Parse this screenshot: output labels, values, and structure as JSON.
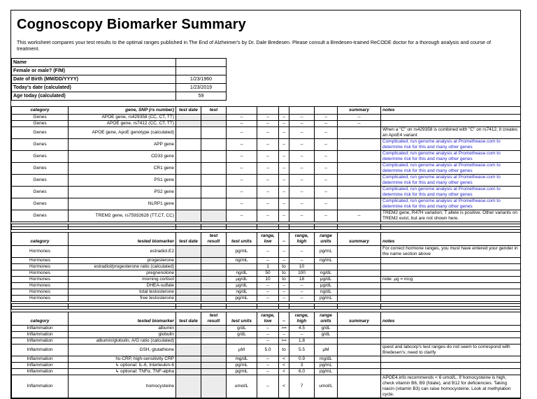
{
  "page": {
    "title": "Cognoscopy Biomarker Summary",
    "subtitle": "This worksheet compares your test results to the optimal ranges published in The End of Alzheimer's by Dr. Dale Bredesen. Please consult a Bredesen-trained ReCODE doctor for a thorough analysis and course of treatment."
  },
  "profile": {
    "rows": [
      {
        "label": "Name",
        "value": ""
      },
      {
        "label": "Female or male?  (F/M)",
        "value": ""
      },
      {
        "label": "Date of Birth (MM/DD/YYYY)",
        "value": "1/23/1960"
      },
      {
        "label": "Today's date (calculated)",
        "value": "1/23/2019"
      },
      {
        "label": "Age today (calculated)",
        "value": "59"
      }
    ]
  },
  "colors": {
    "note_blue": "#2222cc",
    "entry_cell_gray": "#ececec",
    "border": "#000000"
  },
  "tables": [
    {
      "name": "genes",
      "headers": [
        "category",
        "gene, SNP (rs number)",
        "test date",
        "test",
        "",
        "",
        "",
        "",
        "",
        "summary",
        "notes"
      ],
      "rows": [
        {
          "c": [
            "Genes",
            "APOE gene,  rs429358 (CC, CT, TT)",
            "",
            "",
            "--",
            "--",
            "--",
            "--",
            "--",
            "--",
            ""
          ],
          "shaded": true
        },
        {
          "c": [
            "Genes",
            "APOE  gene,  rs7412 (CC, CT, TT)",
            "",
            "",
            "--",
            "--",
            "--",
            "--",
            "--",
            "--",
            ""
          ],
          "shaded": true
        },
        {
          "c": [
            "Genes",
            "APOE gene,  ApoE genotype (calculated)",
            "",
            "",
            "--",
            "--",
            "--",
            "--",
            "--",
            "",
            "When a \"C\" on rs429358 is combined with \"C\" on rs7412, it creates an ApoE4 variant"
          ]
        },
        {
          "c": [
            "Genes",
            "APP gene",
            "",
            "",
            "--",
            "--",
            "--",
            "--",
            "--",
            "",
            "Complicated; run genome analysis at Promethease.com to determine risk for this and many other genes"
          ],
          "blue": true
        },
        {
          "c": [
            "Genes",
            "CD33 gene",
            "",
            "",
            "--",
            "--",
            "--",
            "--",
            "--",
            "",
            "Complicated; run genome analysis at Promethease.com to determine risk for this and many other genes"
          ],
          "blue": true
        },
        {
          "c": [
            "Genes",
            "CR1 gene",
            "",
            "",
            "--",
            "--",
            "--",
            "--",
            "--",
            "",
            "Complicated; run genome analysis at Promethease.com to determine risk for this and many other genes"
          ],
          "blue": true
        },
        {
          "c": [
            "Genes",
            "PS1 gene",
            "",
            "",
            "--",
            "--",
            "--",
            "--",
            "--",
            "",
            "Complicated; run genome analysis at Promethease.com to determine risk for this and many other genes"
          ],
          "blue": true
        },
        {
          "c": [
            "Genes",
            "PS2 gene",
            "",
            "",
            "--",
            "--",
            "--",
            "--",
            "--",
            "",
            "Complicated; run genome analysis at Promethease.com to determine risk for this and many other genes"
          ],
          "blue": true
        },
        {
          "c": [
            "Genes",
            "NLRP1 gene",
            "",
            "",
            "--",
            "--",
            "--",
            "--",
            "--",
            "",
            "Complicated; run genome analysis at Promethease.com to determine risk for this and many other genes"
          ],
          "blue": true
        },
        {
          "c": [
            "Genes",
            "TREM2 gene,  rs75932628 (TT,CT, CC)",
            "",
            "",
            "--",
            "--",
            "--",
            "--",
            "--",
            "--",
            "TREM2 gene, R47H variation; T allele is positive.  Other variants on TREM2 exist, but are not shown here."
          ],
          "shaded": true
        }
      ]
    },
    {
      "name": "hormones",
      "headers": [
        "category",
        "tested biomarker",
        "test date",
        "test\nresult",
        "test units",
        "range,\nlow",
        "--",
        "range, high",
        "range\nunits",
        "summary",
        "notes"
      ],
      "rows": [
        {
          "c": [
            "Hormones",
            "estradiol.E2",
            "",
            "",
            "pg/mL",
            "--",
            "--",
            "--",
            "pg/mL",
            "",
            "For correct hormone ranges, you must have entered your gender in the name section above"
          ],
          "shaded": true
        },
        {
          "c": [
            "Hormones",
            "progesterone",
            "",
            "",
            "ng/mL",
            "--",
            "--",
            "--",
            "ng/mL",
            "",
            ""
          ],
          "shaded": true
        },
        {
          "c": [
            "Hormones",
            "estradiol/progesterone ratio (calculated)",
            "",
            "",
            "",
            "1",
            "to",
            "10",
            "",
            "",
            ""
          ]
        },
        {
          "c": [
            "Hormones",
            "pregnenolone",
            "",
            "",
            "ng/dL",
            "50",
            "to",
            "100",
            "ng/dL",
            "",
            ""
          ],
          "shaded": true
        },
        {
          "c": [
            "Hormones",
            "morning cortisol",
            "",
            "",
            "µg/dL",
            "10",
            "to",
            "18",
            "µg/dL",
            "",
            "note:  µg  =  mcg"
          ],
          "shaded": true
        },
        {
          "c": [
            "Hormones",
            "DHEA-sulfate",
            "",
            "",
            "µg/dL",
            "--",
            "--",
            "--",
            "µg/dL",
            "",
            ""
          ],
          "shaded": true
        },
        {
          "c": [
            "Hormones",
            "total testosterone",
            "",
            "",
            "ng/dL",
            "--",
            "--",
            "--",
            "ng/dL",
            "",
            ""
          ],
          "shaded": true
        },
        {
          "c": [
            "Hormones",
            "free testosterone",
            "",
            "",
            "pg/mL",
            "--",
            "--",
            "--",
            "pg/mL",
            "",
            ""
          ],
          "shaded": true
        }
      ]
    },
    {
      "name": "inflammation",
      "headers": [
        "category",
        "tested biomarker",
        "test date",
        "test\nresult",
        "test units",
        "range,\nlow",
        "--",
        "range, high",
        "range\nunits",
        "summary",
        "notes"
      ],
      "rows": [
        {
          "c": [
            "Inflammation",
            "albumin",
            "",
            "",
            "g/dL",
            "--",
            ">=",
            "4.5",
            "g/dL",
            "",
            ""
          ],
          "shaded": true
        },
        {
          "c": [
            "Inflammation",
            "globulin",
            "",
            "",
            "g/dL",
            "--",
            "--",
            "--",
            "g/dL",
            "",
            ""
          ],
          "shaded": true
        },
        {
          "c": [
            "Inflammation",
            "albumin/globulin, A/G ratio (calculated)",
            "",
            "",
            "",
            "--",
            ">=",
            "1.8",
            "",
            "",
            ""
          ]
        },
        {
          "c": [
            "Inflammation",
            "GSH, glutathione",
            "",
            "",
            "µM",
            "5.0",
            "to",
            "5.5",
            "µM",
            "",
            "quest and labcorp's test ranges do not seem to correspond with Bredesen's; need to clarify"
          ],
          "shaded": true
        },
        {
          "c": [
            "Inflammation",
            "hs-CRP, high-sensitivity CRP",
            "",
            "",
            "mg/dL",
            "--",
            "<",
            "0.9",
            "mg/dL",
            "",
            ""
          ],
          "shaded": true
        },
        {
          "c": [
            "Inflammation",
            "↳ optional:  IL-6, Interleukin-6",
            "",
            "",
            "pg/mL",
            "--",
            "<",
            "3",
            "pg/mL",
            "",
            ""
          ],
          "shaded": true
        },
        {
          "c": [
            "Inflammation",
            "↳ optional:  TNFα, TNF-alpha",
            "",
            "",
            "pg/mL",
            "--",
            "<",
            "6.0",
            "pg/mL",
            "",
            ""
          ],
          "shaded": true
        },
        {
          "c": [
            "Inflammation",
            "homocysteine",
            "",
            "",
            "umol/L",
            "--",
            "<",
            "7",
            "umol/L",
            "",
            "APOE4.info recommends < 6 umol/L. If homocysteine is high, check vitamin B6, B9 (folate), and B12 for deficiencies.  Taking niacin (vitamin B3) can raise homocysteine.  Look at methylation cycle."
          ],
          "shaded": true
        }
      ]
    }
  ]
}
